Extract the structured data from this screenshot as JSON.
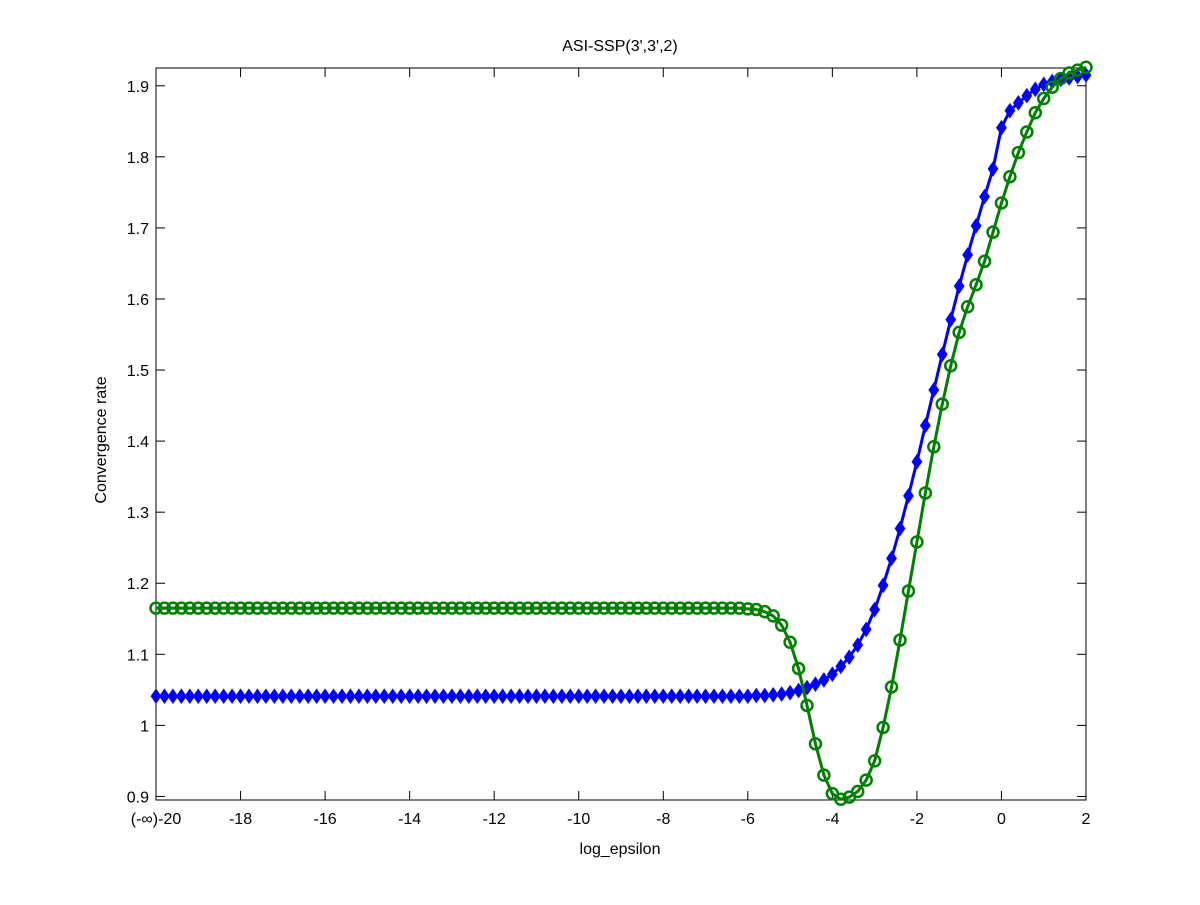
{
  "chart_data": {
    "type": "line",
    "title": "ASI-SSP(3',3',2)",
    "xlabel": "log_epsilon",
    "ylabel": "Convergence rate",
    "xlim": [
      -20,
      2
    ],
    "ylim": [
      0.895,
      1.925
    ],
    "xticks": [
      -20,
      -18,
      -16,
      -14,
      -12,
      -10,
      -8,
      -6,
      -4,
      -2,
      0,
      2
    ],
    "xtick_labels": [
      "(-∞)-20",
      "-18",
      "-16",
      "-14",
      "-12",
      "-10",
      "-8",
      "-6",
      "-4",
      "-2",
      "0",
      "2"
    ],
    "yticks": [
      0.9,
      1,
      1.1,
      1.2,
      1.3,
      1.4,
      1.5,
      1.6,
      1.7,
      1.8,
      1.9
    ],
    "ytick_labels": [
      "0.9",
      "1",
      "1.1",
      "1.2",
      "1.3",
      "1.4",
      "1.5",
      "1.6",
      "1.7",
      "1.8",
      "1.9"
    ],
    "grid": false,
    "legend": "none",
    "series": [
      {
        "color": "#0000ff",
        "marker": "diamond",
        "x": [
          -20,
          -19.8,
          -19.6,
          -19.4,
          -19.2,
          -19,
          -18.8,
          -18.6,
          -18.4,
          -18.2,
          -18,
          -17.8,
          -17.6,
          -17.4,
          -17.2,
          -17,
          -16.8,
          -16.6,
          -16.4,
          -16.2,
          -16,
          -15.8,
          -15.6,
          -15.4,
          -15.2,
          -15,
          -14.8,
          -14.6,
          -14.4,
          -14.2,
          -14,
          -13.8,
          -13.6,
          -13.4,
          -13.2,
          -13,
          -12.8,
          -12.6,
          -12.4,
          -12.2,
          -12,
          -11.8,
          -11.6,
          -11.4,
          -11.2,
          -11,
          -10.8,
          -10.6,
          -10.4,
          -10.2,
          -10,
          -9.8,
          -9.6,
          -9.4,
          -9.2,
          -9,
          -8.8,
          -8.6,
          -8.4,
          -8.2,
          -8,
          -7.8,
          -7.6,
          -7.4,
          -7.2,
          -7,
          -6.8,
          -6.6,
          -6.4,
          -6.2,
          -6,
          -5.8,
          -5.6,
          -5.4,
          -5.2,
          -5,
          -4.8,
          -4.6,
          -4.4,
          -4.2,
          -4,
          -3.8,
          -3.6,
          -3.4,
          -3.2,
          -3,
          -2.8,
          -2.6,
          -2.4,
          -2.2,
          -2,
          -1.8,
          -1.6,
          -1.4,
          -1.2,
          -1,
          -0.8,
          -0.6,
          -0.4,
          -0.2,
          0,
          0.2,
          0.4,
          0.6,
          0.8,
          1,
          1.2,
          1.4,
          1.6,
          1.8,
          2
        ],
        "y": [
          1.041,
          1.041,
          1.041,
          1.041,
          1.041,
          1.041,
          1.041,
          1.041,
          1.041,
          1.041,
          1.041,
          1.041,
          1.041,
          1.041,
          1.041,
          1.041,
          1.041,
          1.041,
          1.041,
          1.041,
          1.041,
          1.041,
          1.041,
          1.041,
          1.041,
          1.041,
          1.041,
          1.041,
          1.041,
          1.041,
          1.041,
          1.041,
          1.041,
          1.041,
          1.041,
          1.041,
          1.041,
          1.041,
          1.041,
          1.041,
          1.041,
          1.041,
          1.041,
          1.041,
          1.041,
          1.041,
          1.041,
          1.041,
          1.041,
          1.041,
          1.041,
          1.041,
          1.041,
          1.041,
          1.041,
          1.041,
          1.041,
          1.041,
          1.041,
          1.041,
          1.041,
          1.041,
          1.041,
          1.041,
          1.041,
          1.041,
          1.041,
          1.041,
          1.041,
          1.041,
          1.041,
          1.042,
          1.042,
          1.043,
          1.044,
          1.046,
          1.049,
          1.053,
          1.058,
          1.064,
          1.072,
          1.083,
          1.096,
          1.113,
          1.135,
          1.163,
          1.197,
          1.235,
          1.277,
          1.323,
          1.371,
          1.422,
          1.472,
          1.522,
          1.571,
          1.618,
          1.662,
          1.703,
          1.744,
          1.783,
          1.841,
          1.865,
          1.876,
          1.886,
          1.895,
          1.902,
          1.906,
          1.909,
          1.911,
          1.913,
          1.915
        ]
      },
      {
        "color": "#008000",
        "marker": "circle",
        "x": [
          -20,
          -19.8,
          -19.6,
          -19.4,
          -19.2,
          -19,
          -18.8,
          -18.6,
          -18.4,
          -18.2,
          -18,
          -17.8,
          -17.6,
          -17.4,
          -17.2,
          -17,
          -16.8,
          -16.6,
          -16.4,
          -16.2,
          -16,
          -15.8,
          -15.6,
          -15.4,
          -15.2,
          -15,
          -14.8,
          -14.6,
          -14.4,
          -14.2,
          -14,
          -13.8,
          -13.6,
          -13.4,
          -13.2,
          -13,
          -12.8,
          -12.6,
          -12.4,
          -12.2,
          -12,
          -11.8,
          -11.6,
          -11.4,
          -11.2,
          -11,
          -10.8,
          -10.6,
          -10.4,
          -10.2,
          -10,
          -9.8,
          -9.6,
          -9.4,
          -9.2,
          -9,
          -8.8,
          -8.6,
          -8.4,
          -8.2,
          -8,
          -7.8,
          -7.6,
          -7.4,
          -7.2,
          -7,
          -6.8,
          -6.6,
          -6.4,
          -6.2,
          -6,
          -5.8,
          -5.6,
          -5.4,
          -5.2,
          -5,
          -4.8,
          -4.6,
          -4.4,
          -4.2,
          -4,
          -3.8,
          -3.6,
          -3.4,
          -3.2,
          -3,
          -2.8,
          -2.6,
          -2.4,
          -2.2,
          -2,
          -1.8,
          -1.6,
          -1.4,
          -1.2,
          -1,
          -0.8,
          -0.6,
          -0.4,
          -0.2,
          0,
          0.2,
          0.4,
          0.6,
          0.8,
          1,
          1.2,
          1.4,
          1.6,
          1.8,
          2
        ],
        "y": [
          1.165,
          1.165,
          1.165,
          1.165,
          1.165,
          1.165,
          1.165,
          1.165,
          1.165,
          1.165,
          1.165,
          1.165,
          1.165,
          1.165,
          1.165,
          1.165,
          1.165,
          1.165,
          1.165,
          1.165,
          1.165,
          1.165,
          1.165,
          1.165,
          1.165,
          1.165,
          1.165,
          1.165,
          1.165,
          1.165,
          1.165,
          1.165,
          1.165,
          1.165,
          1.165,
          1.165,
          1.165,
          1.165,
          1.165,
          1.165,
          1.165,
          1.165,
          1.165,
          1.165,
          1.165,
          1.165,
          1.165,
          1.165,
          1.165,
          1.165,
          1.165,
          1.165,
          1.165,
          1.165,
          1.165,
          1.165,
          1.165,
          1.165,
          1.165,
          1.165,
          1.165,
          1.165,
          1.165,
          1.165,
          1.165,
          1.165,
          1.165,
          1.165,
          1.165,
          1.165,
          1.164,
          1.163,
          1.16,
          1.154,
          1.141,
          1.117,
          1.08,
          1.028,
          0.974,
          0.93,
          0.904,
          0.896,
          0.899,
          0.907,
          0.923,
          0.95,
          0.997,
          1.054,
          1.12,
          1.189,
          1.258,
          1.327,
          1.392,
          1.452,
          1.506,
          1.553,
          1.589,
          1.62,
          1.653,
          1.694,
          1.735,
          1.772,
          1.806,
          1.835,
          1.862,
          1.882,
          1.898,
          1.91,
          1.918,
          1.922,
          1.926
        ]
      }
    ]
  }
}
